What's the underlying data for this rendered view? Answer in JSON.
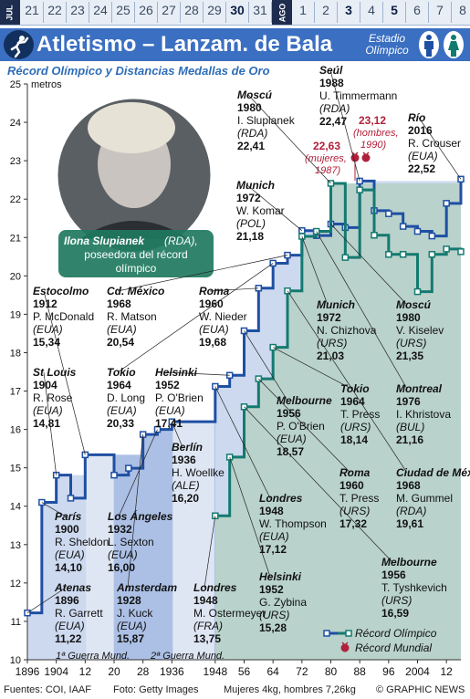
{
  "date_strip": {
    "months": [
      "JUL",
      "AGO"
    ],
    "days": [
      "21",
      "22",
      "23",
      "24",
      "25",
      "26",
      "27",
      "28",
      "29",
      "30",
      "31",
      "1",
      "2",
      "3",
      "4",
      "5",
      "6",
      "7",
      "8"
    ],
    "highlighted": [
      "30",
      "3",
      "5"
    ]
  },
  "header": {
    "title": "Atletismo – Lanzam. de Bala",
    "venue": "Estadio Olímpico",
    "subtitle": "Récord Olímpico y Distancias Medallas de Oro"
  },
  "colors": {
    "header": "#3b6fc2",
    "men": "#1f4fa3",
    "women": "#147a70",
    "record": "#b0203a"
  },
  "chart_data": {
    "type": "line",
    "ylabel": "metros",
    "ylim": [
      10,
      25
    ],
    "yticks": [
      10,
      11,
      12,
      13,
      14,
      15,
      16,
      17,
      18,
      19,
      20,
      21,
      22,
      23,
      24,
      25
    ],
    "xlim": [
      1896,
      2016
    ],
    "xtick_labels": [
      {
        "x": 1896,
        "label": "1896"
      },
      {
        "x": 1904,
        "label": "1904"
      },
      {
        "x": 1912,
        "label": "12"
      },
      {
        "x": 1920,
        "label": "20"
      },
      {
        "x": 1928,
        "label": "28"
      },
      {
        "x": 1936,
        "label": "1936"
      },
      {
        "x": 1948,
        "label": "1948"
      },
      {
        "x": 1956,
        "label": "56"
      },
      {
        "x": 1964,
        "label": "64"
      },
      {
        "x": 1972,
        "label": "72"
      },
      {
        "x": 1980,
        "label": "80"
      },
      {
        "x": 1988,
        "label": "88"
      },
      {
        "x": 1996,
        "label": "96"
      },
      {
        "x": 2004,
        "label": "2004"
      },
      {
        "x": 2012,
        "label": "12"
      }
    ],
    "series": [
      {
        "group": "men",
        "x": [
          1896,
          1900,
          1904,
          1908,
          1912,
          1920,
          1924,
          1928,
          1932,
          1936,
          1948,
          1952,
          1956,
          1960,
          1964,
          1968,
          1972,
          1976,
          1980,
          1984,
          1988,
          1992,
          1996,
          2000,
          2004,
          2008,
          2012,
          2016
        ],
        "values": [
          11.22,
          14.1,
          14.81,
          14.21,
          15.34,
          14.81,
          14.99,
          15.87,
          16.0,
          16.2,
          17.12,
          17.41,
          18.57,
          19.68,
          20.33,
          20.54,
          21.18,
          21.05,
          21.35,
          21.26,
          22.47,
          21.7,
          21.62,
          21.29,
          21.16,
          21.04,
          21.89,
          22.52
        ]
      },
      {
        "group": "women",
        "x": [
          1948,
          1952,
          1956,
          1960,
          1964,
          1968,
          1972,
          1976,
          1980,
          1984,
          1988,
          1992,
          1996,
          2000,
          2004,
          2008,
          2012,
          2016
        ],
        "values": [
          13.75,
          15.28,
          16.59,
          17.32,
          18.14,
          19.61,
          21.03,
          21.16,
          22.41,
          20.48,
          22.24,
          21.06,
          20.56,
          20.56,
          19.59,
          20.56,
          20.7,
          20.63
        ]
      }
    ],
    "world_records": [
      {
        "value": "22,63",
        "note": "(mujeres, 1987)"
      },
      {
        "value": "23,12",
        "note": "(hombres, 1990)"
      }
    ],
    "legend": [
      {
        "label": "Récord Olímpico"
      },
      {
        "label": "Récord Mundial"
      }
    ],
    "war_labels": [
      "1ª Guerra Mund.",
      "2ª Guerra Mund."
    ],
    "annotations": [
      {
        "city": "Atenas",
        "year": "1896",
        "athlete": "R. Garrett",
        "country": "(EUA)",
        "mark": "11,22"
      },
      {
        "city": "París",
        "year": "1900",
        "athlete": "R. Sheldon",
        "country": "(EUA)",
        "mark": "14,10"
      },
      {
        "city": "St Louis",
        "year": "1904",
        "athlete": "R. Rose",
        "country": "(EUA)",
        "mark": "14,81"
      },
      {
        "city": "Estocolmo",
        "year": "1912",
        "athlete": "P. McDonald",
        "country": "(EUA)",
        "mark": "15,34"
      },
      {
        "city": "Amsterdam",
        "year": "1928",
        "athlete": "J. Kuck",
        "country": "(EUA)",
        "mark": "15,87"
      },
      {
        "city": "Los Ángeles",
        "year": "1932",
        "athlete": "L. Sexton",
        "country": "(EUA)",
        "mark": "16,00"
      },
      {
        "city": "Berlín",
        "year": "1936",
        "athlete": "H. Woellke",
        "country": "(ALE)",
        "mark": "16,20"
      },
      {
        "city": "Londres",
        "year": "1948",
        "athlete": "M. Ostermeyer",
        "country": "(FRA)",
        "mark": "13,75"
      },
      {
        "city": "Helsinki",
        "year": "1952",
        "athlete": "P. O'Brien",
        "country": "(EUA)",
        "mark": "17,41"
      },
      {
        "city": "Tokio",
        "year": "1964",
        "athlete": "D. Long",
        "country": "(EUA)",
        "mark": "20,33"
      },
      {
        "city": "Cd. México",
        "year": "1968",
        "athlete": "R. Matson",
        "country": "(EUA)",
        "mark": "20,54"
      },
      {
        "city": "Roma",
        "year": "1960",
        "athlete": "W. Nieder",
        "country": "(EUA)",
        "mark": "19,68"
      },
      {
        "city": "Munich",
        "year": "1972",
        "athlete": "W. Komar",
        "country": "(POL)",
        "mark": "21,18"
      },
      {
        "city": "Moscú",
        "year": "1980",
        "athlete": "I. Slupianek",
        "country": "(RDA)",
        "mark": "22,41"
      },
      {
        "city": "Seúl",
        "year": "1988",
        "athlete": "U. Timmermann",
        "country": "(RDA)",
        "mark": "22,47"
      },
      {
        "city": "Río",
        "year": "2016",
        "athlete": "R. Crouser",
        "country": "(EUA)",
        "mark": "22,52"
      },
      {
        "city": "Munich",
        "year": "1972",
        "athlete": "N. Chizhova",
        "country": "(URS)",
        "mark": "21,03"
      },
      {
        "city": "Moscú",
        "year": "1980",
        "athlete": "V. Kiselev",
        "country": "(URS)",
        "mark": "21,35"
      },
      {
        "city": "Melbourne",
        "year": "1956",
        "athlete": "P. O'Brien",
        "country": "(EUA)",
        "mark": "18,57"
      },
      {
        "city": "Tokio",
        "year": "1964",
        "athlete": "T. Press",
        "country": "(URS)",
        "mark": "18,14"
      },
      {
        "city": "Montreal",
        "year": "1976",
        "athlete": "I. Khristova",
        "country": "(BUL)",
        "mark": "21,16"
      },
      {
        "city": "Roma",
        "year": "1960",
        "athlete": "T. Press",
        "country": "(URS)",
        "mark": "17,32"
      },
      {
        "city": "Ciudad de México",
        "year": "1968",
        "athlete": "M. Gummel",
        "country": "(RDA)",
        "mark": "19,61"
      },
      {
        "city": "Londres",
        "year": "1948",
        "athlete": "W. Thompson",
        "country": "(EUA)",
        "mark": "17,12"
      },
      {
        "city": "Helsinki",
        "year": "1952",
        "athlete": "G. Zybina",
        "country": "(URS)",
        "mark": "15,28"
      },
      {
        "city": "Melbourne",
        "year": "1956",
        "athlete": "T. Tyshkevich",
        "country": "(URS)",
        "mark": "16,59"
      }
    ],
    "photo_caption": {
      "name": "Ilona Slupianek",
      "rest": "(RDA), poseedora del récord olímpico"
    }
  },
  "footer": {
    "sources": "Fuentes: COI, IAAF",
    "photo": "Foto: Getty Images",
    "weights": "Mujeres 4kg, hombres 7,26kg",
    "credit": "© GRAPHIC NEWS"
  }
}
